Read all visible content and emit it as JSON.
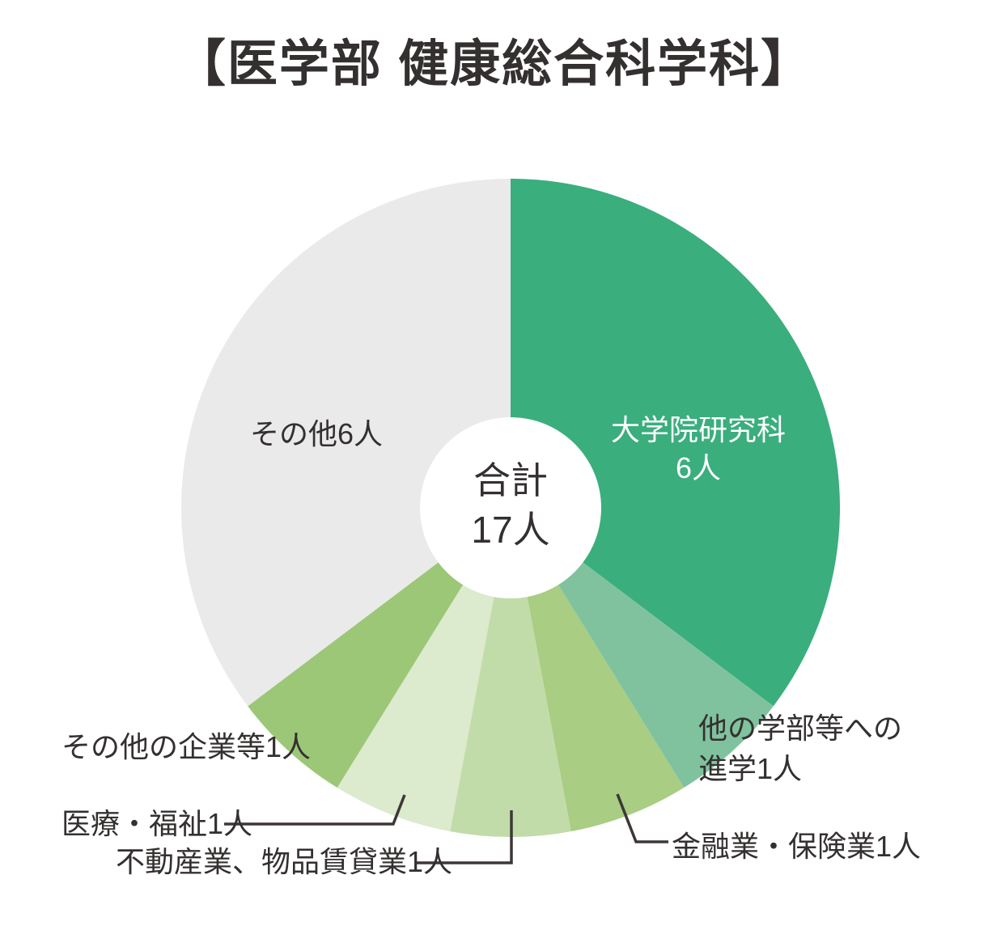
{
  "title": "【医学部 健康総合科学科】",
  "center_label": {
    "line1": "合計",
    "line2": "17人"
  },
  "unit": "人",
  "total_text": "合計17人",
  "colors": {
    "graduate_green": "#3aae7d",
    "other_faculty_green": "#80c29e",
    "finance_green": "#a8cd83",
    "real_estate_green": "#c2dca9",
    "medical_green": "#dceacd",
    "other_companies_green": "#9bc777",
    "others_gray": "#eaeaea",
    "text_dark": "#343030",
    "leader_line": "#3d3837",
    "background": "#ffffff",
    "slice_label_white": "#ffffff"
  },
  "chart_data": {
    "type": "pie",
    "subtype": "donut",
    "title": "【医学部 健康総合科学科】",
    "total": 17,
    "unit": "人",
    "start_angle_deg": 0,
    "direction": "clockwise",
    "legend_position": "none",
    "labels_on_chart": true,
    "center_text": "合計 17人",
    "segments": [
      {
        "label": "大学院研究科",
        "value": 6,
        "color": "#3aae7d",
        "display_label": "大学院研究科6人"
      },
      {
        "label": "他の学部等への進学",
        "value": 1,
        "color": "#80c29e",
        "display_label": "他の学部等への進学1人"
      },
      {
        "label": "金融業・保険業",
        "value": 1,
        "color": "#a8cd83",
        "display_label": "金融業・保険業1人"
      },
      {
        "label": "不動産業、物品賃貸業",
        "value": 1,
        "color": "#c2dca9",
        "display_label": "不動産業、物品賃貸業1人"
      },
      {
        "label": "医療・福祉",
        "value": 1,
        "color": "#dceacd",
        "display_label": "医療・福祉1人"
      },
      {
        "label": "その他の企業等",
        "value": 1,
        "color": "#9bc777",
        "display_label": "その他の企業等1人"
      },
      {
        "label": "その他",
        "value": 6,
        "color": "#eaeaea",
        "display_label": "その他6人"
      }
    ]
  },
  "labels": {
    "graduate": {
      "line1": "大学院研究科",
      "line2": "6人"
    },
    "others": "その他6人",
    "other_faculty": {
      "line1": "他の学部等への",
      "line2": "進学1人"
    },
    "finance": "金融業・保険業1人",
    "real_estate": "不動産業、物品賃貸業1人",
    "medical": "医療・福祉1人",
    "other_companies": "その他の企業等1人"
  }
}
